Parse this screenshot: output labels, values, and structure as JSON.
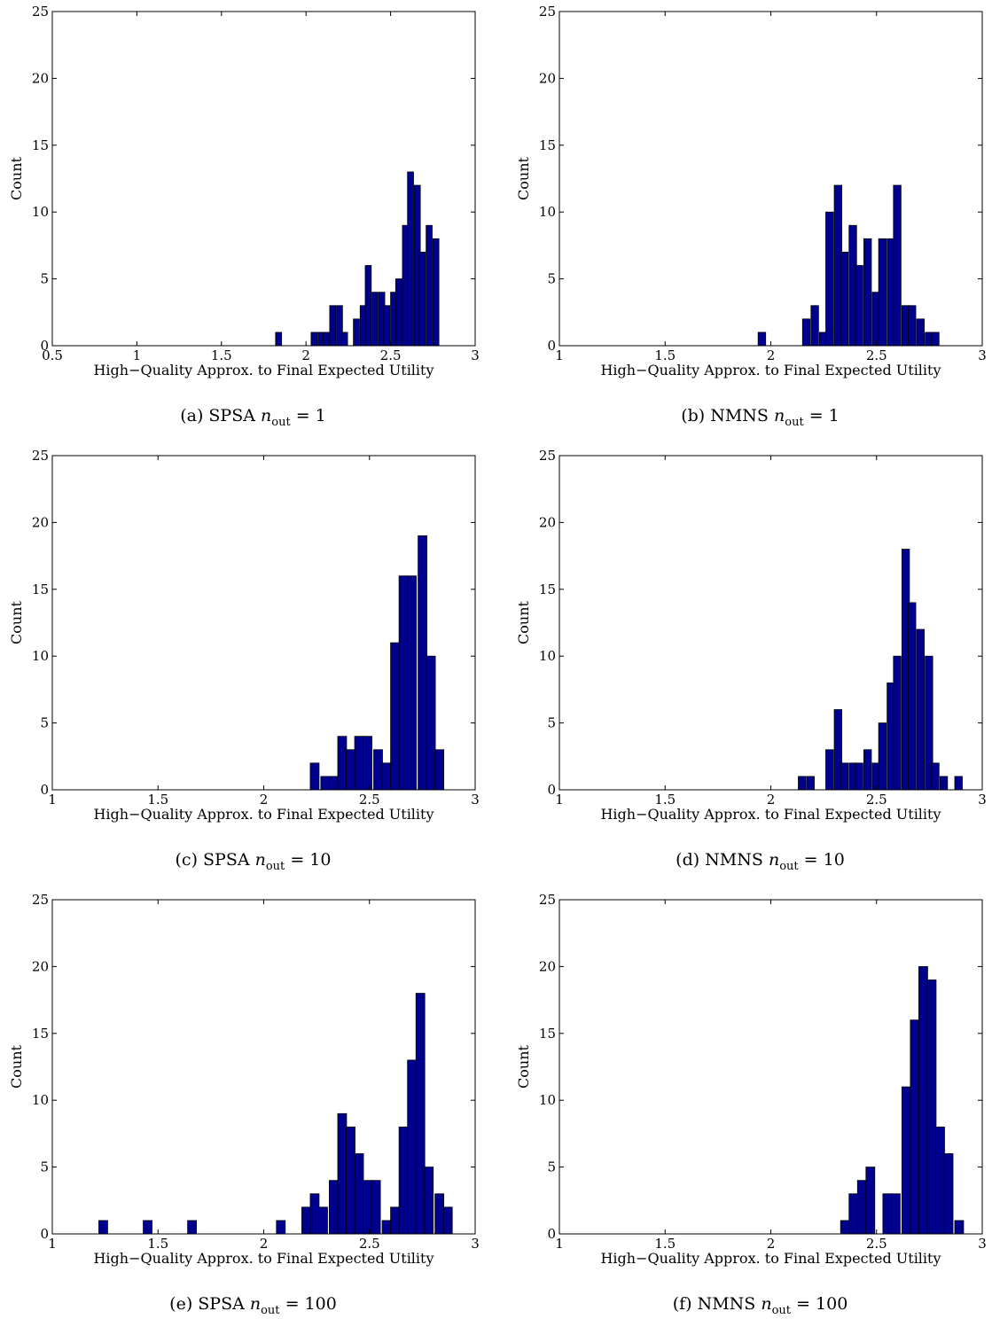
{
  "colors": {
    "bar_fill": "#00008F",
    "bar_edge": "#000000",
    "axis": "#000000"
  },
  "chart_data": [
    {
      "type": "bar",
      "caption": {
        "prefix": "(a) SPSA ",
        "var": "n",
        "sub": "out",
        "suffix": " = 1"
      },
      "xlabel": "High−Quality Approx. to Final Expected Utility",
      "ylabel": "Count",
      "xlim": [
        0.5,
        3
      ],
      "ylim": [
        0,
        25
      ],
      "xticks": [
        0.5,
        1,
        1.5,
        2,
        2.5,
        3
      ],
      "xtick_labels": [
        "0.5",
        "1",
        "1.5",
        "2",
        "2.5",
        "3"
      ],
      "yticks": [
        0,
        5,
        10,
        15,
        20,
        25
      ],
      "ytick_labels": [
        "0",
        "5",
        "10",
        "15",
        "20",
        "25"
      ],
      "bin_width": 0.0357,
      "bins": [
        [
          1.82,
          1
        ],
        [
          2.03,
          1
        ],
        [
          2.07,
          1
        ],
        [
          2.1,
          1
        ],
        [
          2.14,
          3
        ],
        [
          2.18,
          3
        ],
        [
          2.21,
          1
        ],
        [
          2.28,
          2
        ],
        [
          2.32,
          3
        ],
        [
          2.35,
          6
        ],
        [
          2.39,
          4
        ],
        [
          2.43,
          4
        ],
        [
          2.46,
          3
        ],
        [
          2.5,
          4
        ],
        [
          2.53,
          5
        ],
        [
          2.57,
          9
        ],
        [
          2.6,
          13
        ],
        [
          2.64,
          12
        ],
        [
          2.67,
          7
        ],
        [
          2.71,
          9
        ],
        [
          2.75,
          8
        ]
      ]
    },
    {
      "type": "bar",
      "caption": {
        "prefix": "(b) NMNS ",
        "var": "n",
        "sub": "out",
        "suffix": " = 1"
      },
      "xlabel": "High−Quality Approx. to Final Expected Utility",
      "ylabel": "Count",
      "xlim": [
        1,
        3
      ],
      "ylim": [
        0,
        25
      ],
      "xticks": [
        1,
        1.5,
        2,
        2.5,
        3
      ],
      "xtick_labels": [
        "1",
        "1.5",
        "2",
        "2.5",
        "3"
      ],
      "yticks": [
        0,
        5,
        10,
        15,
        20,
        25
      ],
      "ytick_labels": [
        "0",
        "5",
        "10",
        "15",
        "20",
        "25"
      ],
      "bin_width": 0.0357,
      "bins": [
        [
          1.94,
          1
        ],
        [
          2.15,
          2
        ],
        [
          2.19,
          3
        ],
        [
          2.23,
          1
        ],
        [
          2.26,
          10
        ],
        [
          2.3,
          12
        ],
        [
          2.33,
          7
        ],
        [
          2.37,
          9
        ],
        [
          2.4,
          6
        ],
        [
          2.44,
          8
        ],
        [
          2.48,
          4
        ],
        [
          2.51,
          8
        ],
        [
          2.55,
          8
        ],
        [
          2.58,
          12
        ],
        [
          2.62,
          3
        ],
        [
          2.65,
          3
        ],
        [
          2.69,
          2
        ],
        [
          2.73,
          1
        ],
        [
          2.76,
          1
        ]
      ]
    },
    {
      "type": "bar",
      "caption": {
        "prefix": "(c) SPSA ",
        "var": "n",
        "sub": "out",
        "suffix": " = 10"
      },
      "xlabel": "High−Quality Approx. to Final Expected Utility",
      "ylabel": "Count",
      "xlim": [
        1,
        3
      ],
      "ylim": [
        0,
        25
      ],
      "xticks": [
        1,
        1.5,
        2,
        2.5,
        3
      ],
      "xtick_labels": [
        "1",
        "1.5",
        "2",
        "2.5",
        "3"
      ],
      "yticks": [
        0,
        5,
        10,
        15,
        20,
        25
      ],
      "ytick_labels": [
        "0",
        "5",
        "10",
        "15",
        "20",
        "25"
      ],
      "bin_width": 0.0417,
      "bins": [
        [
          2.22,
          2
        ],
        [
          2.27,
          1
        ],
        [
          2.31,
          1
        ],
        [
          2.35,
          4
        ],
        [
          2.39,
          3
        ],
        [
          2.43,
          4
        ],
        [
          2.47,
          4
        ],
        [
          2.52,
          3
        ],
        [
          2.56,
          2
        ],
        [
          2.6,
          11
        ],
        [
          2.64,
          16
        ],
        [
          2.68,
          16
        ],
        [
          2.73,
          19
        ],
        [
          2.77,
          10
        ],
        [
          2.81,
          3
        ]
      ]
    },
    {
      "type": "bar",
      "caption": {
        "prefix": "(d) NMNS ",
        "var": "n",
        "sub": "out",
        "suffix": " = 10"
      },
      "xlabel": "High−Quality Approx. to Final Expected Utility",
      "ylabel": "Count",
      "xlim": [
        1,
        3
      ],
      "ylim": [
        0,
        25
      ],
      "xticks": [
        1,
        1.5,
        2,
        2.5,
        3
      ],
      "xtick_labels": [
        "1",
        "1.5",
        "2",
        "2.5",
        "3"
      ],
      "yticks": [
        0,
        5,
        10,
        15,
        20,
        25
      ],
      "ytick_labels": [
        "0",
        "5",
        "10",
        "15",
        "20",
        "25"
      ],
      "bin_width": 0.0357,
      "bins": [
        [
          2.13,
          1
        ],
        [
          2.17,
          1
        ],
        [
          2.26,
          3
        ],
        [
          2.3,
          6
        ],
        [
          2.33,
          2
        ],
        [
          2.37,
          2
        ],
        [
          2.4,
          2
        ],
        [
          2.44,
          3
        ],
        [
          2.48,
          2
        ],
        [
          2.51,
          5
        ],
        [
          2.55,
          8
        ],
        [
          2.58,
          10
        ],
        [
          2.62,
          18
        ],
        [
          2.65,
          14
        ],
        [
          2.69,
          12
        ],
        [
          2.73,
          10
        ],
        [
          2.76,
          2
        ],
        [
          2.8,
          1
        ],
        [
          2.87,
          1
        ]
      ]
    },
    {
      "type": "bar",
      "caption": {
        "prefix": "(e) SPSA ",
        "var": "n",
        "sub": "out",
        "suffix": " = 100"
      },
      "xlabel": "High−Quality Approx. to Final Expected Utility",
      "ylabel": "Count",
      "xlim": [
        1,
        3
      ],
      "ylim": [
        0,
        25
      ],
      "xticks": [
        1,
        1.5,
        2,
        2.5,
        3
      ],
      "xtick_labels": [
        "1",
        "1.5",
        "2",
        "2.5",
        "3"
      ],
      "yticks": [
        0,
        5,
        10,
        15,
        20,
        25
      ],
      "ytick_labels": [
        "0",
        "5",
        "10",
        "15",
        "20",
        "25"
      ],
      "bin_width": 0.0417,
      "bins": [
        [
          1.22,
          1
        ],
        [
          1.43,
          1
        ],
        [
          1.64,
          1
        ],
        [
          2.06,
          1
        ],
        [
          2.18,
          2
        ],
        [
          2.22,
          3
        ],
        [
          2.26,
          2
        ],
        [
          2.31,
          4
        ],
        [
          2.35,
          9
        ],
        [
          2.39,
          8
        ],
        [
          2.43,
          6
        ],
        [
          2.47,
          4
        ],
        [
          2.51,
          4
        ],
        [
          2.56,
          1
        ],
        [
          2.6,
          2
        ],
        [
          2.64,
          8
        ],
        [
          2.68,
          13
        ],
        [
          2.72,
          18
        ],
        [
          2.76,
          5
        ],
        [
          2.81,
          3
        ],
        [
          2.85,
          2
        ]
      ]
    },
    {
      "type": "bar",
      "caption": {
        "prefix": "(f) NMNS ",
        "var": "n",
        "sub": "out",
        "suffix": " = 100"
      },
      "xlabel": "High−Quality Approx. to Final Expected Utility",
      "ylabel": "Count",
      "xlim": [
        1,
        3
      ],
      "ylim": [
        0,
        25
      ],
      "xticks": [
        1,
        1.5,
        2,
        2.5,
        3
      ],
      "xtick_labels": [
        "1",
        "1.5",
        "2",
        "2.5",
        "3"
      ],
      "yticks": [
        0,
        5,
        10,
        15,
        20,
        25
      ],
      "ytick_labels": [
        "0",
        "5",
        "10",
        "15",
        "20",
        "25"
      ],
      "bin_width": 0.0417,
      "bins": [
        [
          2.33,
          1
        ],
        [
          2.37,
          3
        ],
        [
          2.41,
          4
        ],
        [
          2.45,
          5
        ],
        [
          2.53,
          3
        ],
        [
          2.57,
          3
        ],
        [
          2.62,
          11
        ],
        [
          2.66,
          16
        ],
        [
          2.7,
          20
        ],
        [
          2.74,
          19
        ],
        [
          2.78,
          8
        ],
        [
          2.82,
          6
        ],
        [
          2.87,
          1
        ]
      ]
    }
  ]
}
